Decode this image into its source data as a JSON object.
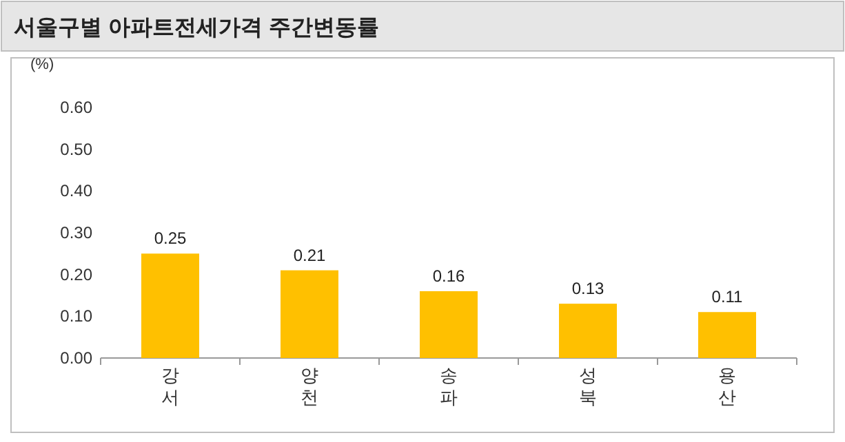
{
  "chart_data": {
    "type": "bar",
    "title": "서울구별 아파트전세가격 주간변동률",
    "ylabel": "(%)",
    "categories": [
      "강서",
      "양천",
      "송파",
      "성북",
      "용산"
    ],
    "values": [
      0.25,
      0.21,
      0.16,
      0.13,
      0.11
    ],
    "color": "#ffc000",
    "ylim": [
      0,
      0.6
    ],
    "yticks": [
      {
        "value": 0,
        "label": "0.00"
      },
      {
        "value": 0.1,
        "label": "0.10"
      },
      {
        "value": 0.2,
        "label": "0.20"
      },
      {
        "value": 0.3,
        "label": "0.30"
      },
      {
        "value": 0.4,
        "label": "0.40"
      },
      {
        "value": 0.5,
        "label": "0.50"
      },
      {
        "value": 0.6,
        "label": "0.60"
      }
    ],
    "data_labels": true,
    "grid": false
  }
}
